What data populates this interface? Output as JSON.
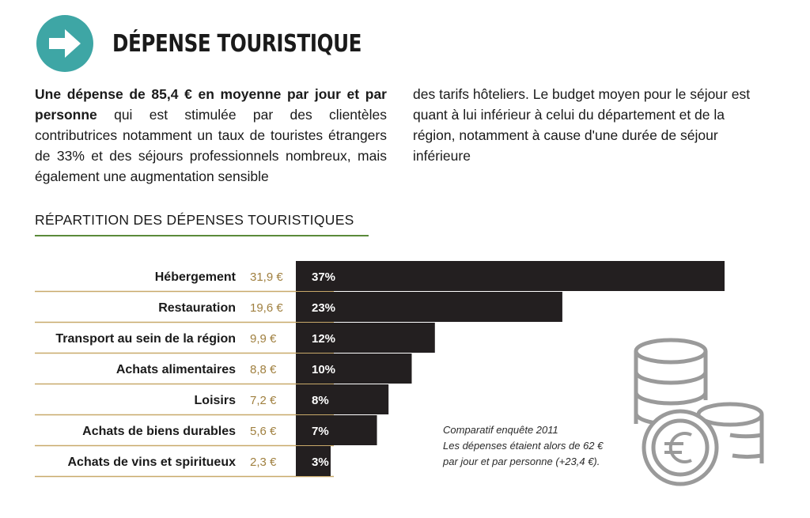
{
  "header": {
    "title": "DÉPENSE TOURISTIQUE",
    "icon": "arrow-right-circle-icon",
    "accent": "#3ea6a5"
  },
  "intro": {
    "bold_lead": "Une dépense de 85,4 € en moyenne par jour et par personne",
    "left_rest": " qui est stimulée par des clientèles contributrices notamment un taux de touristes étrangers de 33% et des séjours professionnels nombreux, mais également une augmentation sensible",
    "right": "des tarifs hôteliers. Le budget moyen pour le séjour est quant à lui inférieur à celui du département et de la région, notamment à cause d'une durée de séjour inférieure"
  },
  "chart_data": {
    "type": "bar",
    "orientation": "horizontal",
    "title": "RÉPARTITION DES DÉPENSES TOURISTIQUES",
    "categories": [
      "Hébergement",
      "Restauration",
      "Transport au sein de la région",
      "Achats alimentaires",
      "Loisirs",
      "Achats de biens durables",
      "Achats de vins et spiritueux"
    ],
    "amounts": [
      "31,9 €",
      "19,6 €",
      "9,9 €",
      "8,8 €",
      "7,2 €",
      "5,6 €",
      "2,3 €"
    ],
    "values": [
      37,
      23,
      12,
      10,
      8,
      7,
      3
    ],
    "value_labels": [
      "37%",
      "23%",
      "12%",
      "10%",
      "8%",
      "7%",
      "3%"
    ],
    "xlim": [
      0,
      37
    ],
    "bar_color": "#231f20",
    "amount_color": "#a08040",
    "rule_color": "#c8a96a"
  },
  "note": {
    "line1": "Comparatif enquête 2011",
    "line2": "Les dépenses étaient alors de 62 €",
    "line3": "par jour et par personne (+23,4 €)."
  },
  "decoration": {
    "icon": "euro-coins-icon"
  }
}
